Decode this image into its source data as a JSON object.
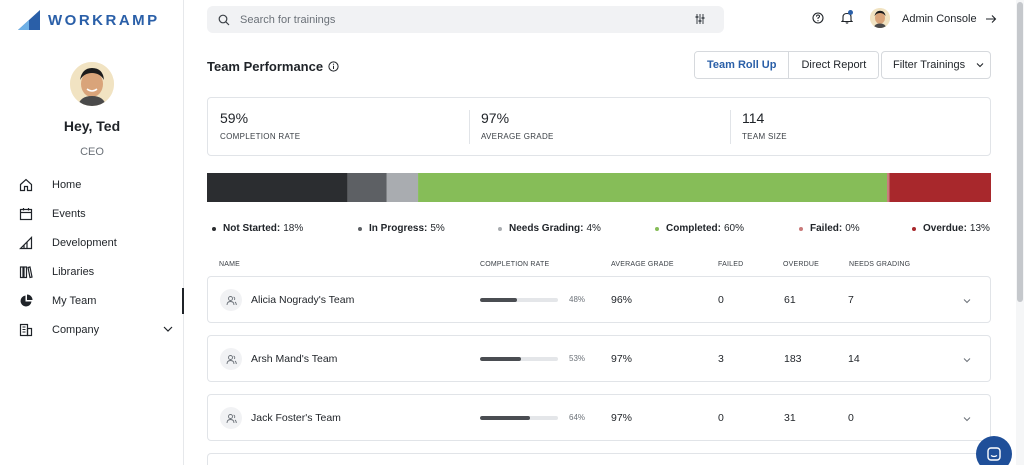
{
  "app": {
    "brand": "WORKRAMP"
  },
  "sidebar": {
    "greeting": "Hey, Ted",
    "role": "CEO",
    "items": [
      {
        "label": "Home",
        "icon": "home-icon"
      },
      {
        "label": "Events",
        "icon": "calendar-icon"
      },
      {
        "label": "Development",
        "icon": "development-icon"
      },
      {
        "label": "Libraries",
        "icon": "books-icon"
      },
      {
        "label": "My Team",
        "icon": "pie-chart-icon",
        "active": true
      },
      {
        "label": "Company",
        "icon": "building-icon",
        "expandable": true
      }
    ]
  },
  "topbar": {
    "search_placeholder": "Search for trainings",
    "admin_label": "Admin Console"
  },
  "header": {
    "title": "Team Performance",
    "view_options": [
      "Team Roll Up",
      "Direct Report"
    ],
    "selected_view": "Team Roll Up",
    "filter_label": "Filter Trainings"
  },
  "stats": [
    {
      "value": "59%",
      "label": "COMPLETION RATE"
    },
    {
      "value": "97%",
      "label": "AVERAGE GRADE"
    },
    {
      "value": "114",
      "label": "TEAM SIZE"
    }
  ],
  "status_breakdown": [
    {
      "label": "Not Started:",
      "value": "18%",
      "pct": 18,
      "color": "#2b2d30"
    },
    {
      "label": "In Progress:",
      "value": "5%",
      "pct": 5,
      "color": "#5d6064"
    },
    {
      "label": "Needs Grading:",
      "value": "4%",
      "pct": 4,
      "color": "#a9acb0"
    },
    {
      "label": "Completed:",
      "value": "60%",
      "pct": 60,
      "color": "#86bd58"
    },
    {
      "label": "Failed:",
      "value": "0%",
      "pct": 0.3,
      "color": "#c97a7a"
    },
    {
      "label": "Overdue:",
      "value": "13%",
      "pct": 13,
      "color": "#a8282c"
    }
  ],
  "table": {
    "columns": [
      "NAME",
      "COMPLETION RATE",
      "AVERAGE GRADE",
      "FAILED",
      "OVERDUE",
      "NEEDS GRADING"
    ],
    "rows": [
      {
        "name": "Alicia Nogrady's Team",
        "completion": 48,
        "completion_label": "48%",
        "grade": "96%",
        "failed": "0",
        "overdue": "61",
        "needs_grading": "7"
      },
      {
        "name": "Arsh Mand's Team",
        "completion": 53,
        "completion_label": "53%",
        "grade": "97%",
        "failed": "3",
        "overdue": "183",
        "needs_grading": "14"
      },
      {
        "name": "Jack Foster's Team",
        "completion": 64,
        "completion_label": "64%",
        "grade": "97%",
        "failed": "0",
        "overdue": "31",
        "needs_grading": "0"
      }
    ]
  }
}
